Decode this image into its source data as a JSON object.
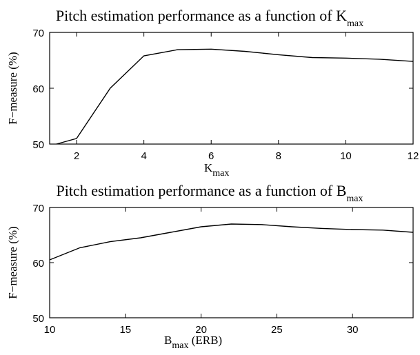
{
  "chart_data": [
    {
      "type": "line",
      "title": "Pitch estimation performance as a function of K",
      "title_subscript": "max",
      "xlabel": "K",
      "xlabel_subscript": "max",
      "xlabel_suffix": "",
      "ylabel": "F−measure (%)",
      "xlim": [
        1.2,
        12
      ],
      "ylim": [
        50,
        70
      ],
      "xticks": [
        2,
        4,
        6,
        8,
        10,
        12
      ],
      "yticks": [
        50,
        60,
        70
      ],
      "x": [
        1.4,
        2,
        3,
        4,
        5,
        6,
        7,
        8,
        9,
        10,
        11,
        12
      ],
      "values": [
        50,
        51,
        60,
        65.8,
        66.9,
        67,
        66.6,
        66,
        65.5,
        65.4,
        65.2,
        64.8
      ]
    },
    {
      "type": "line",
      "title": "Pitch estimation performance as a function of B",
      "title_subscript": "max",
      "xlabel": "B",
      "xlabel_subscript": "max",
      "xlabel_suffix": " (ERB)",
      "ylabel": "F−measure (%)",
      "xlim": [
        10,
        34
      ],
      "ylim": [
        50,
        70
      ],
      "xticks": [
        10,
        15,
        20,
        25,
        30
      ],
      "yticks": [
        50,
        60,
        70
      ],
      "x": [
        10,
        12,
        14,
        16,
        18,
        20,
        22,
        24,
        26,
        28,
        30,
        32,
        34
      ],
      "values": [
        60.5,
        62.7,
        63.8,
        64.5,
        65.5,
        66.5,
        67,
        66.9,
        66.5,
        66.2,
        66,
        65.9,
        65.5
      ]
    }
  ]
}
